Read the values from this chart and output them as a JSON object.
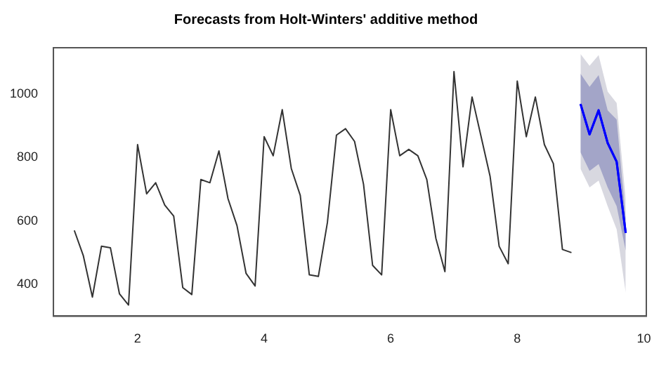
{
  "chart_data": {
    "type": "line",
    "title": "Forecasts from Holt-Winters' additive method",
    "xlim": [
      0.67,
      10.04
    ],
    "xticks": [
      2,
      4,
      6,
      8,
      10
    ],
    "ylim": [
      300,
      1145
    ],
    "yticks": [
      400,
      600,
      800,
      1000
    ],
    "grid": false,
    "legend": false,
    "marker": "none",
    "series": [
      {
        "color": "#333333",
        "x": [
          1,
          1.143,
          1.286,
          1.429,
          1.571,
          1.714,
          1.857,
          2,
          2.143,
          2.286,
          2.429,
          2.571,
          2.714,
          2.857,
          3,
          3.143,
          3.286,
          3.429,
          3.571,
          3.714,
          3.857,
          4,
          4.143,
          4.286,
          4.429,
          4.571,
          4.714,
          4.857,
          5,
          5.143,
          5.286,
          5.429,
          5.571,
          5.714,
          5.857,
          6,
          6.143,
          6.286,
          6.429,
          6.571,
          6.714,
          6.857,
          7,
          7.143,
          7.286,
          7.429,
          7.571,
          7.714,
          7.857,
          8,
          8.143,
          8.286,
          8.429,
          8.571,
          8.714,
          8.857
        ],
        "values": [
          570,
          490,
          360,
          520,
          515,
          370,
          335,
          840,
          685,
          720,
          650,
          615,
          390,
          368,
          730,
          720,
          820,
          670,
          585,
          435,
          395,
          865,
          805,
          950,
          765,
          680,
          430,
          425,
          595,
          870,
          890,
          850,
          715,
          460,
          430,
          950,
          805,
          825,
          805,
          730,
          545,
          440,
          1070,
          770,
          990,
          865,
          740,
          520,
          465,
          1040,
          865,
          990,
          840,
          780,
          510,
          500
        ]
      },
      {
        "color": "#0000ff",
        "x": [
          9,
          9.143,
          9.286,
          9.429,
          9.571,
          9.714
        ],
        "values": [
          968,
          872,
          948,
          845,
          786,
          562
        ],
        "lower": [
          764,
          705,
          727,
          646,
          573,
          374
        ],
        "upper": [
          1125,
          1088,
          1122,
          1007,
          971,
          668
        ]
      },
      {
        "color": "#0000ff",
        "x": [
          9,
          9.143,
          9.286,
          9.429,
          9.571,
          9.714
        ],
        "values": [
          968,
          872,
          948,
          845,
          786,
          562
        ],
        "lower": [
          816,
          757,
          779,
          705,
          646,
          506
        ],
        "upper": [
          1063,
          1022,
          1059,
          948,
          919,
          609
        ]
      }
    ]
  }
}
